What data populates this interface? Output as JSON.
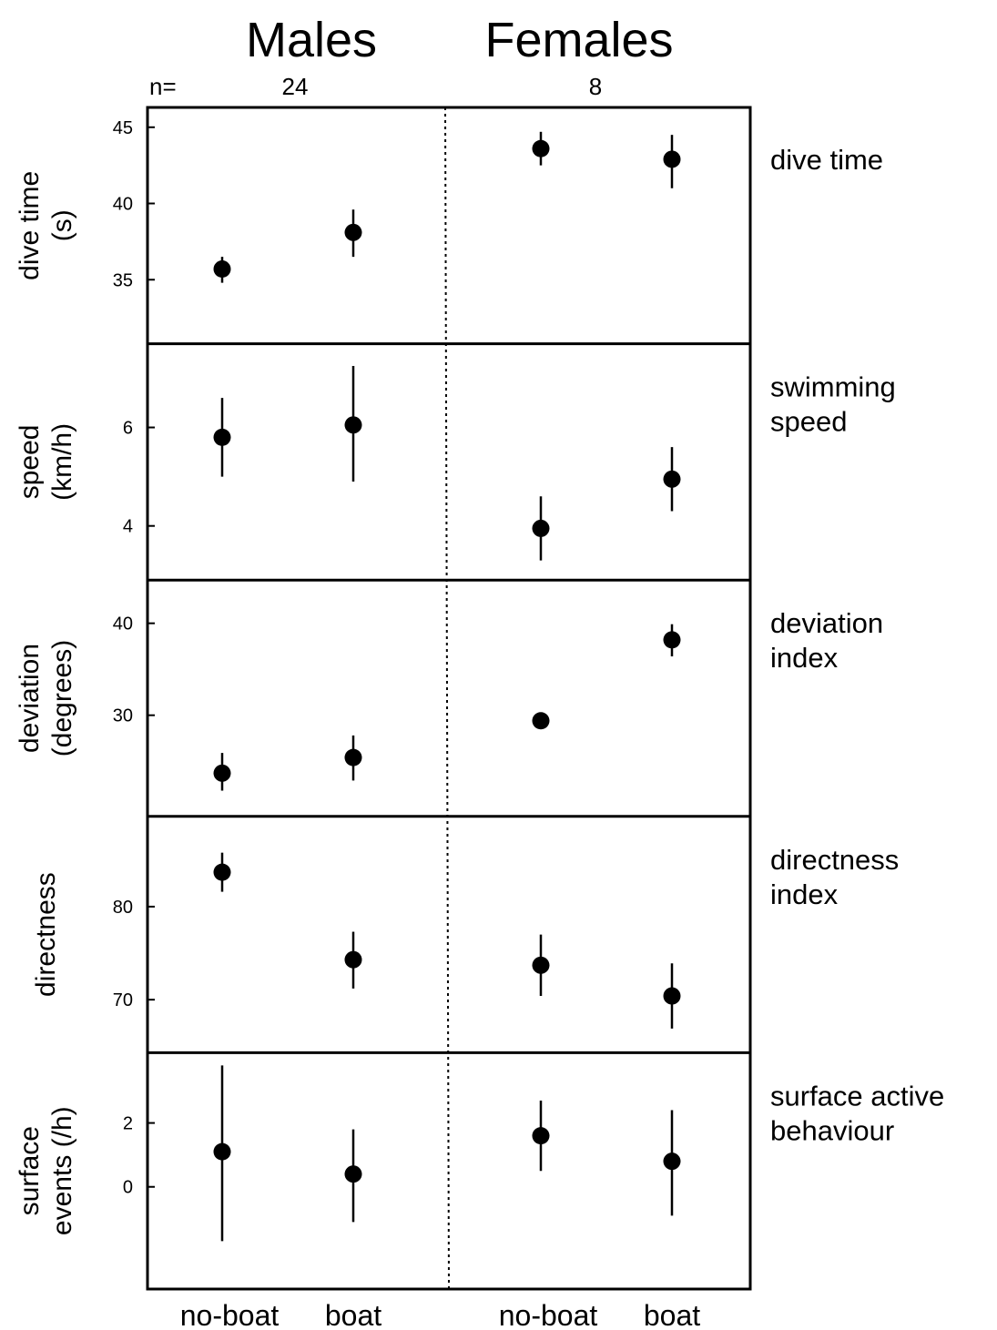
{
  "header": {
    "males": "Males",
    "females": "Females",
    "n_label": "n=",
    "n_males": "24",
    "n_females": "8"
  },
  "x_labels": [
    "no-boat",
    "boat",
    "no-boat",
    "boat"
  ],
  "chart_data": [
    {
      "type": "scatter",
      "panel": "dive time",
      "right_label": [
        "dive time"
      ],
      "ylabel": [
        "dive time",
        "(s)"
      ],
      "yticks": [
        35,
        40,
        45
      ],
      "ylim": [
        30.8,
        46.3
      ],
      "groups": [
        "Males no-boat",
        "Males boat",
        "Females no-boat",
        "Females boat"
      ],
      "values": [
        35.7,
        38.1,
        43.6,
        42.9
      ],
      "err_low": [
        34.8,
        36.5,
        42.5,
        41.0
      ],
      "err_high": [
        36.5,
        39.6,
        44.7,
        44.5
      ]
    },
    {
      "type": "scatter",
      "panel": "swimming speed",
      "right_label": [
        "swimming",
        "speed"
      ],
      "ylabel": [
        "speed",
        "(km/h)"
      ],
      "yticks": [
        4,
        6
      ],
      "ylim": [
        2.9,
        7.7
      ],
      "groups": [
        "Males no-boat",
        "Males boat",
        "Females no-boat",
        "Females boat"
      ],
      "values": [
        5.8,
        6.05,
        3.95,
        4.95
      ],
      "err_low": [
        5.0,
        4.9,
        3.3,
        4.3
      ],
      "err_high": [
        6.6,
        7.25,
        4.6,
        5.6
      ]
    },
    {
      "type": "scatter",
      "panel": "deviation index",
      "right_label": [
        "deviation",
        "index"
      ],
      "ylabel": [
        "deviation",
        "(degrees)"
      ],
      "yticks": [
        30,
        40
      ],
      "ylim": [
        19.0,
        44.7
      ],
      "groups": [
        "Males no-boat",
        "Males boat",
        "Females no-boat",
        "Females boat"
      ],
      "values": [
        23.7,
        25.4,
        29.4,
        38.2
      ],
      "err_low": [
        21.8,
        22.9,
        28.8,
        36.4
      ],
      "err_high": [
        25.9,
        27.8,
        30.0,
        39.9
      ]
    },
    {
      "type": "scatter",
      "panel": "directness index",
      "right_label": [
        "directness",
        "index"
      ],
      "ylabel": [
        "directness"
      ],
      "yticks": [
        70,
        80
      ],
      "ylim": [
        64.3,
        89.7
      ],
      "groups": [
        "Males no-boat",
        "Males boat",
        "Females no-boat",
        "Females boat"
      ],
      "values": [
        83.7,
        74.3,
        73.7,
        70.4
      ],
      "err_low": [
        81.6,
        71.2,
        70.4,
        66.9
      ],
      "err_high": [
        85.8,
        77.3,
        77.0,
        73.9
      ]
    },
    {
      "type": "scatter",
      "panel": "surface active behaviour",
      "right_label": [
        "surface active",
        "behaviour"
      ],
      "ylabel": [
        "surface",
        "events (/h)"
      ],
      "yticks": [
        0,
        2
      ],
      "ylim": [
        -3.2,
        4.2
      ],
      "groups": [
        "Males no-boat",
        "Males boat",
        "Females no-boat",
        "Females boat"
      ],
      "values": [
        1.1,
        0.4,
        1.6,
        0.8
      ],
      "err_low": [
        -1.7,
        -1.1,
        0.5,
        -0.9
      ],
      "err_high": [
        3.8,
        1.8,
        2.7,
        2.4
      ]
    }
  ]
}
